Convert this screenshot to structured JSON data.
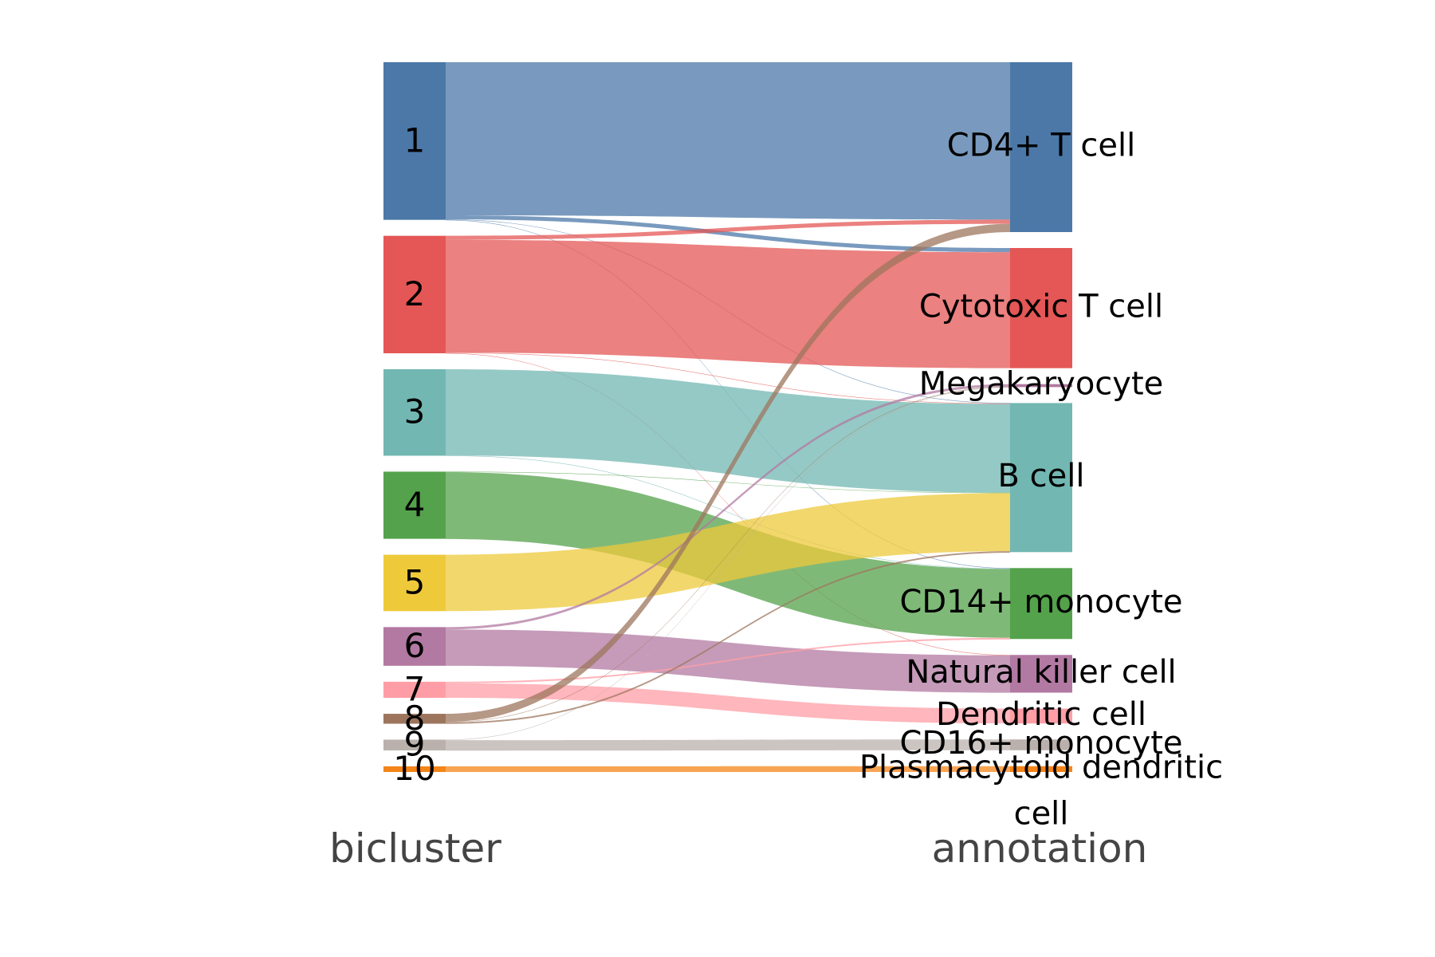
{
  "chart_data": {
    "type": "sankey",
    "dimensions": [
      {
        "label": "bicluster",
        "categories": [
          "1",
          "2",
          "3",
          "4",
          "5",
          "6",
          "7",
          "8",
          "9",
          "10"
        ]
      },
      {
        "label": "annotation",
        "categories": [
          "CD4+ T cell",
          "Cytotoxic T cell",
          "Megakaryocyte",
          "B cell",
          "CD14+ monocyte",
          "Natural killer cell",
          "Dendritic cell",
          "CD16+ monocyte",
          "Plasmacytoid dendritic cell"
        ]
      }
    ],
    "source_colors": {
      "1": "#4c78a8",
      "2": "#e45756",
      "3": "#72b7b2",
      "4": "#54a24b",
      "5": "#eeca3b",
      "6": "#b279a2",
      "7": "#ff9da6",
      "8": "#9d755d",
      "9": "#bab0ac",
      "10": "#f58518"
    },
    "flows": [
      {
        "source": "1",
        "target": "CD4+ T cell",
        "value": 190
      },
      {
        "source": "1",
        "target": "Cytotoxic T cell",
        "value": 5
      },
      {
        "source": "1",
        "target": "B cell",
        "value": 0.3
      },
      {
        "source": "1",
        "target": "CD14+ monocyte",
        "value": 0.3
      },
      {
        "source": "2",
        "target": "CD4+ T cell",
        "value": 5
      },
      {
        "source": "2",
        "target": "Cytotoxic T cell",
        "value": 140
      },
      {
        "source": "2",
        "target": "Natural killer cell",
        "value": 0.5
      },
      {
        "source": "2",
        "target": "B cell",
        "value": 0.3
      },
      {
        "source": "3",
        "target": "B cell",
        "value": 107
      },
      {
        "source": "3",
        "target": "CD14+ monocyte",
        "value": 0.3
      },
      {
        "source": "4",
        "target": "CD14+ monocyte",
        "value": 83
      },
      {
        "source": "4",
        "target": "B cell",
        "value": 0.3
      },
      {
        "source": "5",
        "target": "B cell",
        "value": 70
      },
      {
        "source": "6",
        "target": "Natural killer cell",
        "value": 45
      },
      {
        "source": "6",
        "target": "Megakaryocyte",
        "value": 3
      },
      {
        "source": "7",
        "target": "Dendritic cell",
        "value": 18
      },
      {
        "source": "7",
        "target": "CD14+ monocyte",
        "value": 2
      },
      {
        "source": "8",
        "target": "CD4+ T cell",
        "value": 10
      },
      {
        "source": "8",
        "target": "B cell",
        "value": 2
      },
      {
        "source": "8",
        "target": "Megakaryocyte",
        "value": 0.3
      },
      {
        "source": "9",
        "target": "CD16+ monocyte",
        "value": 13
      },
      {
        "source": "9",
        "target": "Megakaryocyte",
        "value": 0.3
      },
      {
        "source": "10",
        "target": "Plasmacytoid dendritic cell",
        "value": 7
      }
    ]
  }
}
